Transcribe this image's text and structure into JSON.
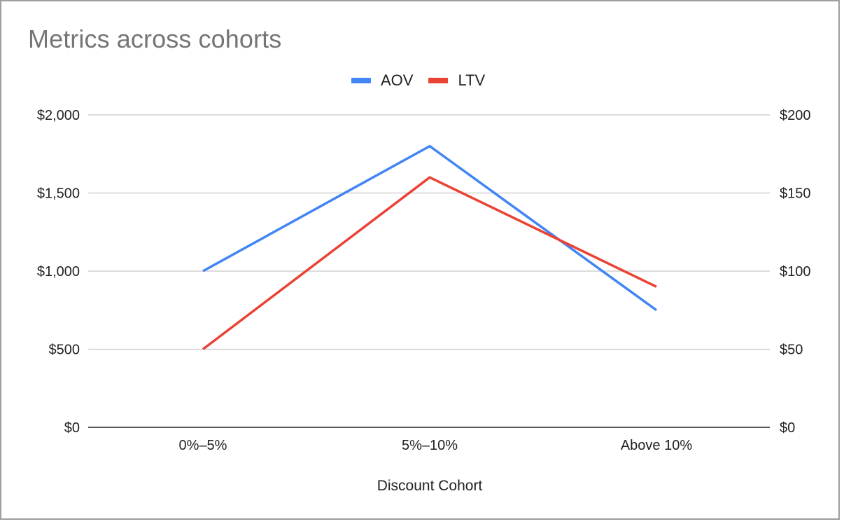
{
  "chart_data": {
    "type": "line",
    "title": "Metrics across cohorts",
    "xlabel": "Discount Cohort",
    "categories": [
      "0%–5%",
      "5%–10%",
      "Above 10%"
    ],
    "left_axis": {
      "ticks": [
        "$0",
        "$500",
        "$1,000",
        "$1,500",
        "$2,000"
      ],
      "ylim": [
        0,
        2000
      ]
    },
    "right_axis": {
      "ticks": [
        "$0",
        "$50",
        "$100",
        "$150",
        "$200"
      ],
      "ylim": [
        0,
        200
      ]
    },
    "series": [
      {
        "name": "AOV",
        "axis": "left",
        "color": "#4285F4",
        "values": [
          1000,
          1800,
          750
        ]
      },
      {
        "name": "LTV",
        "axis": "right",
        "color": "#EA4335",
        "values": [
          50,
          160,
          90
        ]
      }
    ],
    "grid": true,
    "legend": "top-center"
  }
}
